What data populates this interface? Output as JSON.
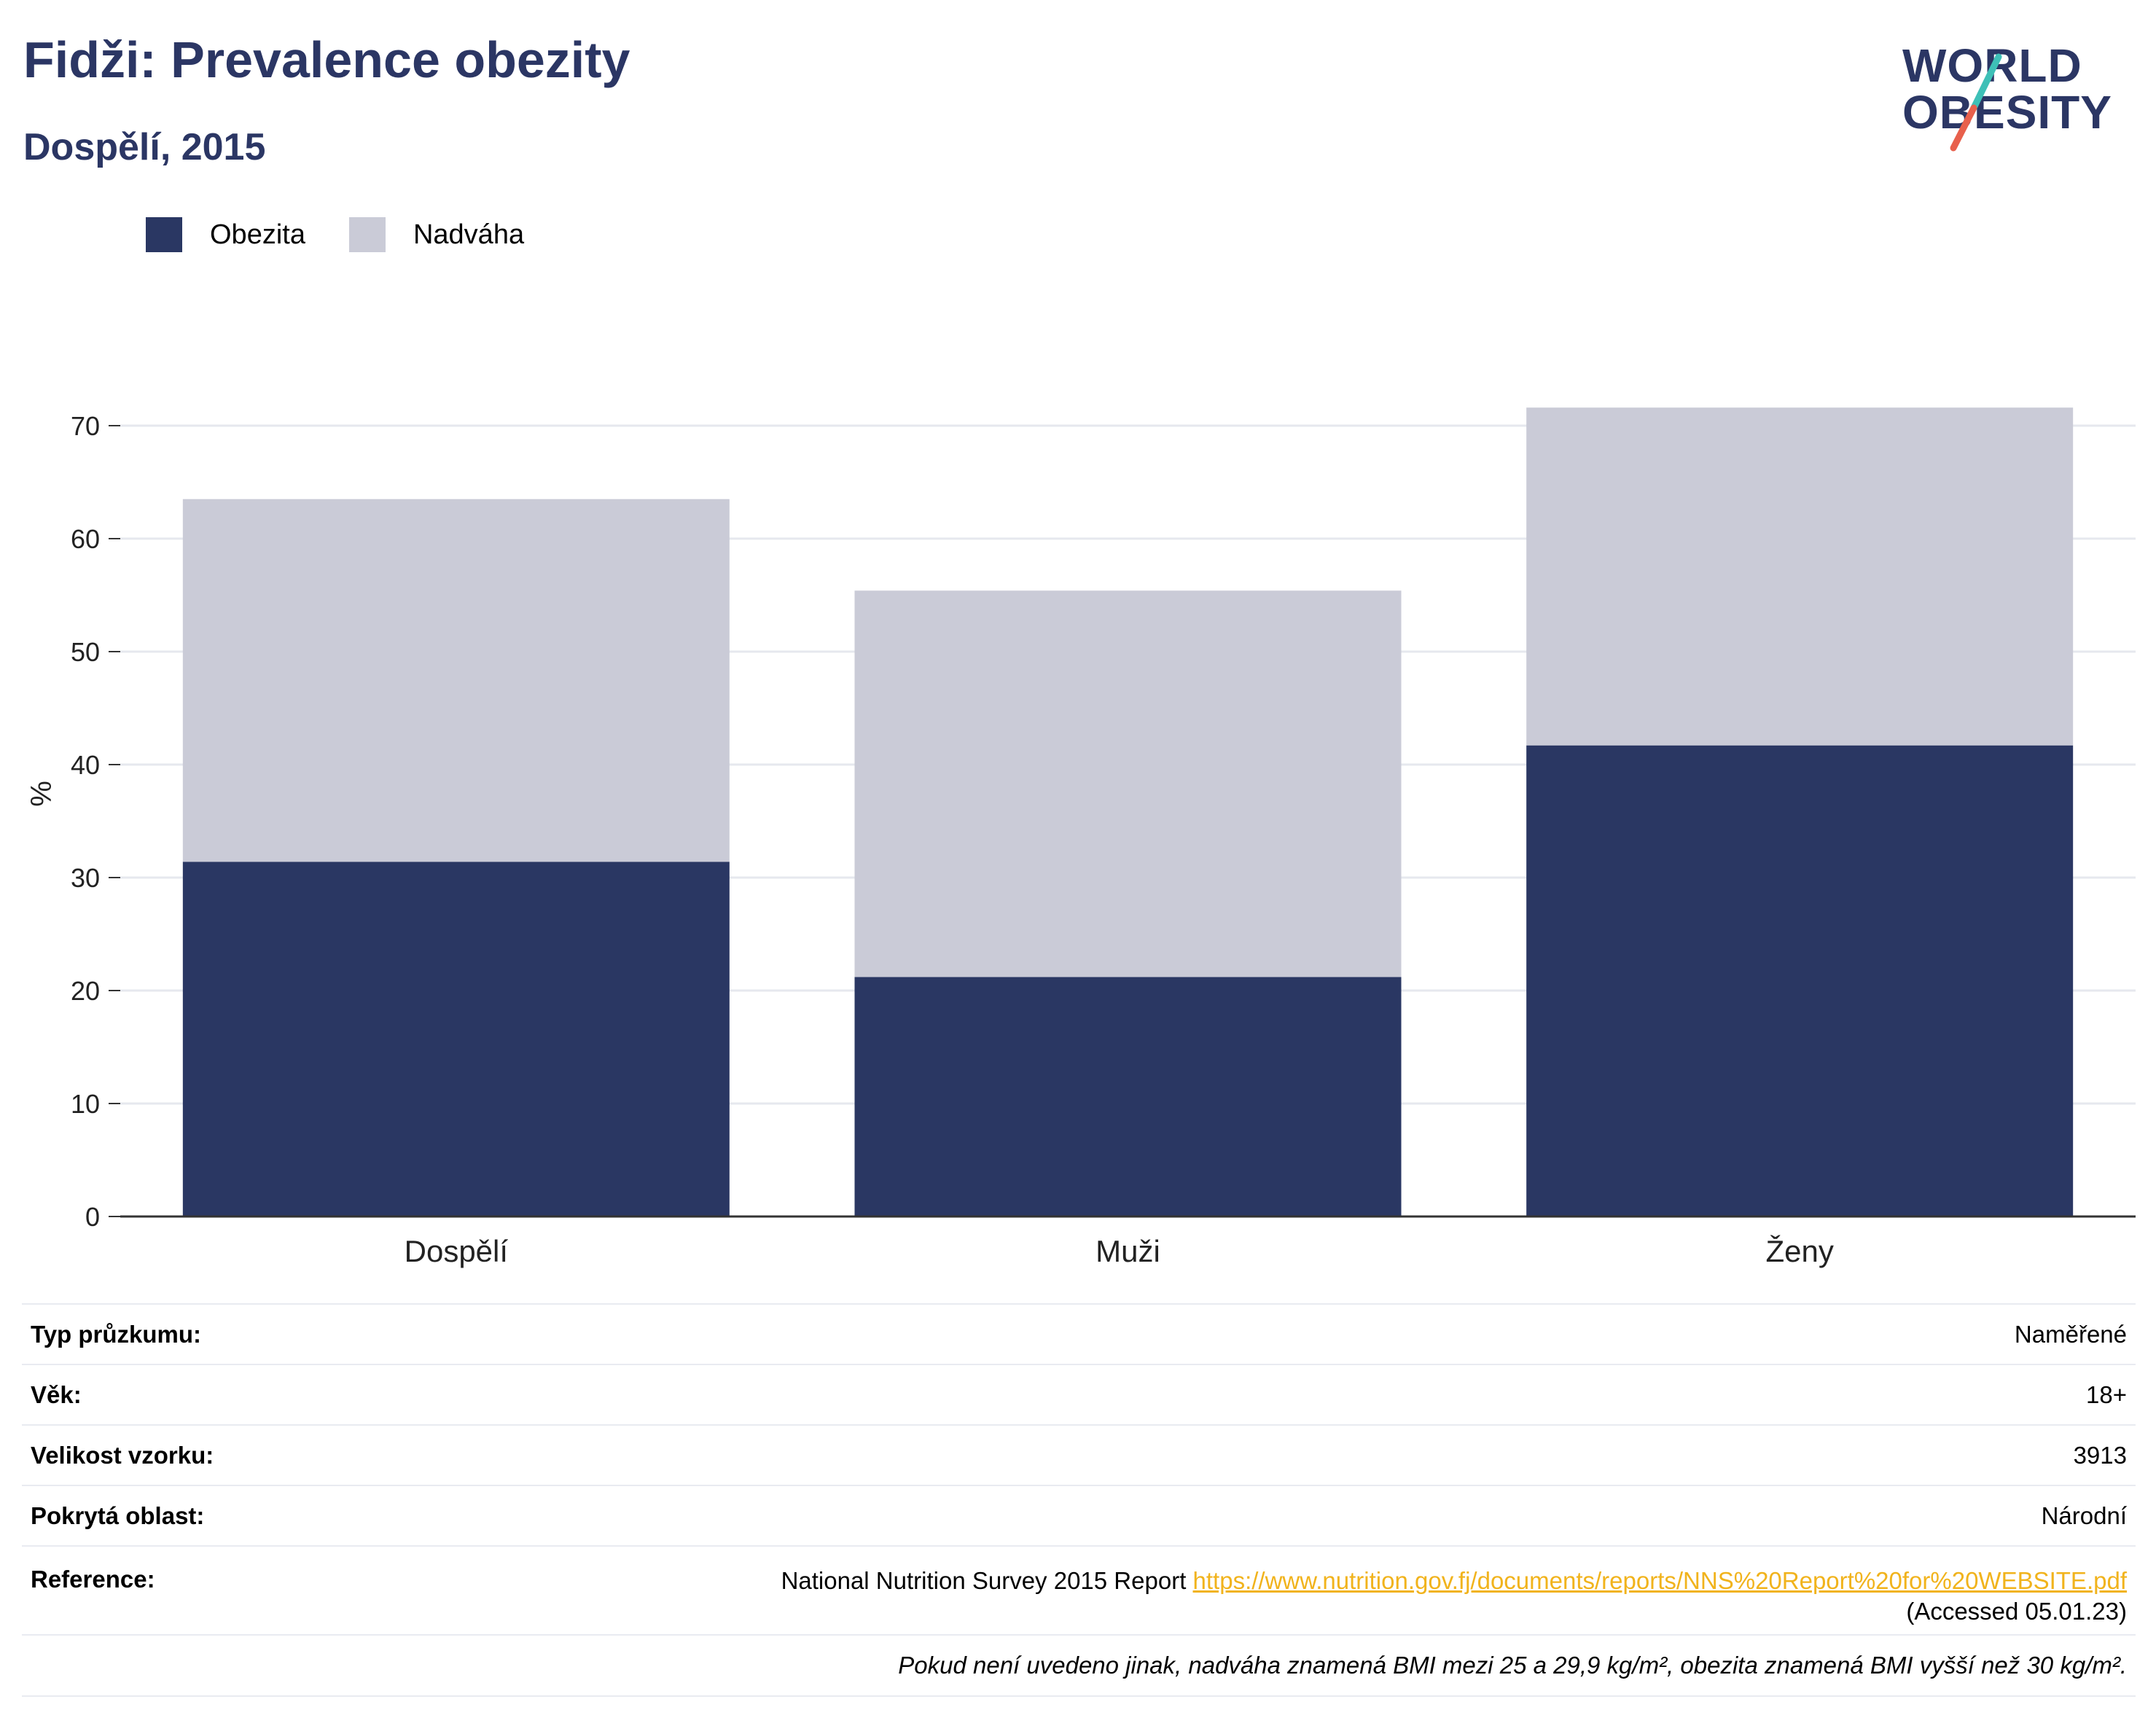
{
  "header": {
    "title": "Fidži: Prevalence obezity",
    "subtitle": "Dospělí, 2015"
  },
  "logo": {
    "line1": "WORLD",
    "line2": "OBESITY",
    "accent_colors": [
      "#3ec0b7",
      "#e8604c"
    ]
  },
  "legend": {
    "items": [
      {
        "label": "Obezita",
        "color": "#2a3763"
      },
      {
        "label": "Nadváha",
        "color": "#cacbd7"
      }
    ]
  },
  "chart_data": {
    "type": "bar",
    "stacked": true,
    "categories": [
      "Dospělí",
      "Muži",
      "Ženy"
    ],
    "series": [
      {
        "name": "Obezita",
        "color": "#2a3763",
        "values": [
          31.4,
          21.2,
          41.7
        ]
      },
      {
        "name": "Nadváha",
        "color": "#cacbd7",
        "values": [
          32.1,
          34.2,
          29.9
        ]
      }
    ],
    "ylabel": "%",
    "ylim": [
      0,
      75
    ],
    "yticks": [
      0,
      10,
      20,
      30,
      40,
      50,
      60,
      70
    ],
    "grid": true,
    "legend_position": "top-left"
  },
  "info": {
    "rows": [
      {
        "key": "Typ průzkumu:",
        "value": "Naměřené"
      },
      {
        "key": "Věk:",
        "value": "18+"
      },
      {
        "key": "Velikost vzorku:",
        "value": "3913"
      },
      {
        "key": "Pokrytá oblast:",
        "value": "Národní"
      }
    ],
    "reference": {
      "key": "Reference:",
      "text": "National Nutrition Survey 2015 Report",
      "link": "https://www.nutrition.gov.fj/documents/reports/NNS%20Report%20for%20WEBSITE.pdf",
      "accessed": "(Accessed 05.01.23)"
    },
    "note": "Pokud není uvedeno jinak, nadváha znamená BMI mezi 25 a 29,9 kg/m², obezita znamená BMI vyšší než 30 kg/m²."
  }
}
